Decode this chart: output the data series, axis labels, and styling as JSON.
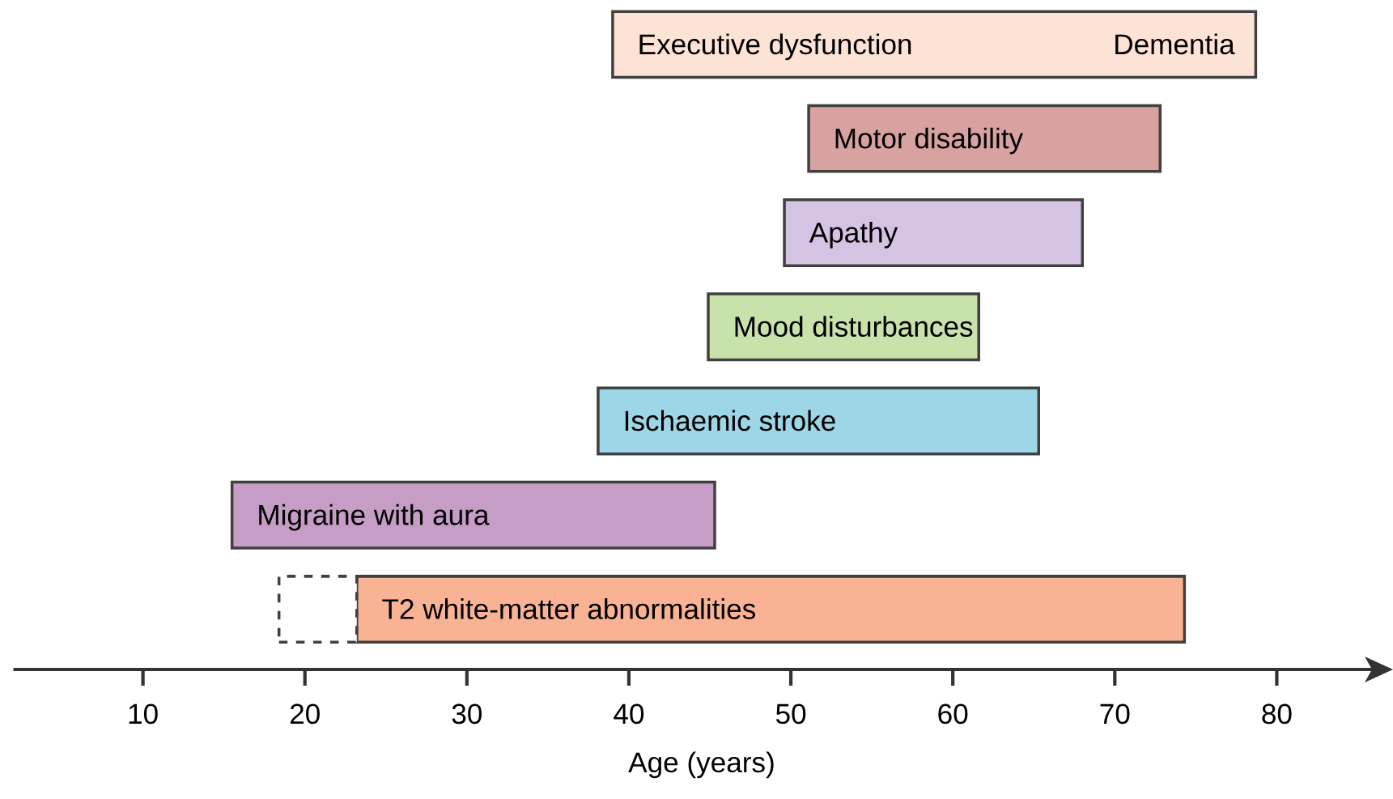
{
  "chart_data": {
    "type": "bar",
    "orientation": "horizontal",
    "xlabel": "Age (years)",
    "categories": [
      "Executive dysfunction",
      "Motor disability",
      "Apathy",
      "Mood disturbances",
      "Ischaemic stroke",
      "Migraine with aura",
      "T2 white-matter abnormalities"
    ],
    "series": [
      {
        "base": [
          39.0,
          51.1,
          49.6,
          44.9,
          38.1,
          15.5,
          23.2
        ],
        "values": [
          39.7,
          21.7,
          18.4,
          16.7,
          27.2,
          29.8,
          51.1
        ],
        "colors": [
          "#fde3d6",
          "#d7a2a0",
          "#d5c3e3",
          "#c7e2ab",
          "#9dd6e6",
          "#c59dc6",
          "#f9b394"
        ],
        "line_style": "solid"
      },
      {
        "base": [
          null,
          null,
          null,
          null,
          null,
          null,
          18.4
        ],
        "values": [
          null,
          null,
          null,
          null,
          null,
          null,
          4.8
        ],
        "color": "#ffffff",
        "line_style": "dashed"
      }
    ],
    "annotations": [
      {
        "text": "Dementia",
        "x": 78.7,
        "y": "Executive dysfunction"
      }
    ],
    "xlim": [
      2,
      87
    ],
    "xticks": [
      10,
      20,
      30,
      40,
      50,
      60,
      70,
      80
    ],
    "tick_labels": "x"
  }
}
